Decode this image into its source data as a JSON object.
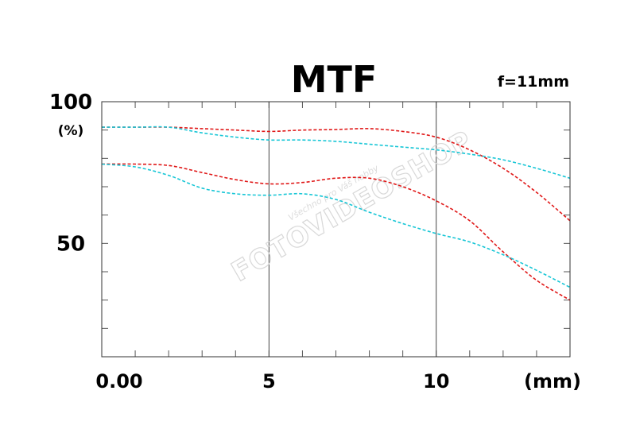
{
  "chart_data": {
    "type": "line",
    "title": "MTF",
    "focal_length": "f=11mm",
    "y_unit": "(%)",
    "x_unit": "(mm)",
    "xlim": [
      0,
      14
    ],
    "ylim": [
      10,
      100
    ],
    "x_ticks": [
      {
        "value": 0,
        "label": "0.00"
      },
      {
        "value": 5,
        "label": "5"
      },
      {
        "value": 10,
        "label": "10"
      }
    ],
    "y_ticks": [
      {
        "value": 100,
        "label": "100"
      },
      {
        "value": 50,
        "label": "50"
      }
    ],
    "x_gridlines": [
      5,
      10
    ],
    "grid": true,
    "series": [
      {
        "color": "#e01818",
        "dashed": true,
        "points": [
          [
            0,
            91
          ],
          [
            1,
            91
          ],
          [
            2,
            91
          ],
          [
            3,
            90.5
          ],
          [
            4,
            90
          ],
          [
            5,
            89.5
          ],
          [
            6,
            90
          ],
          [
            7,
            90.2
          ],
          [
            8,
            90.5
          ],
          [
            9,
            89.5
          ],
          [
            10,
            87.5
          ],
          [
            11,
            83
          ],
          [
            12,
            76.5
          ],
          [
            13,
            68
          ],
          [
            14,
            58
          ]
        ]
      },
      {
        "color": "#e01818",
        "dashed": true,
        "points": [
          [
            0,
            78
          ],
          [
            1,
            78
          ],
          [
            2,
            77.5
          ],
          [
            3,
            75
          ],
          [
            4,
            72.5
          ],
          [
            5,
            71
          ],
          [
            6,
            71.5
          ],
          [
            7,
            73
          ],
          [
            8,
            73
          ],
          [
            9,
            70
          ],
          [
            10,
            65
          ],
          [
            11,
            58
          ],
          [
            12,
            47
          ],
          [
            13,
            37
          ],
          [
            14,
            30
          ]
        ]
      },
      {
        "color": "#17c6d6",
        "dashed": true,
        "points": [
          [
            0,
            91
          ],
          [
            1,
            91
          ],
          [
            2,
            91
          ],
          [
            3,
            89
          ],
          [
            4,
            87.5
          ],
          [
            5,
            86.5
          ],
          [
            6,
            86.5
          ],
          [
            7,
            86
          ],
          [
            8,
            85
          ],
          [
            9,
            84
          ],
          [
            10,
            83
          ],
          [
            11,
            81.5
          ],
          [
            12,
            79.5
          ],
          [
            13,
            76.5
          ],
          [
            14,
            73
          ]
        ]
      },
      {
        "color": "#17c6d6",
        "dashed": true,
        "points": [
          [
            0,
            78
          ],
          [
            1,
            77
          ],
          [
            2,
            74
          ],
          [
            3,
            69.5
          ],
          [
            4,
            67.5
          ],
          [
            5,
            67
          ],
          [
            6,
            67.5
          ],
          [
            7,
            65.5
          ],
          [
            8,
            61
          ],
          [
            9,
            57
          ],
          [
            10,
            53.5
          ],
          [
            11,
            50.5
          ],
          [
            12,
            46
          ],
          [
            13,
            40.5
          ],
          [
            14,
            34.5
          ]
        ]
      }
    ]
  },
  "watermark": {
    "main": "FOTOVIDEOSHOP",
    "sub": "Všechno pro Váš hobby"
  }
}
